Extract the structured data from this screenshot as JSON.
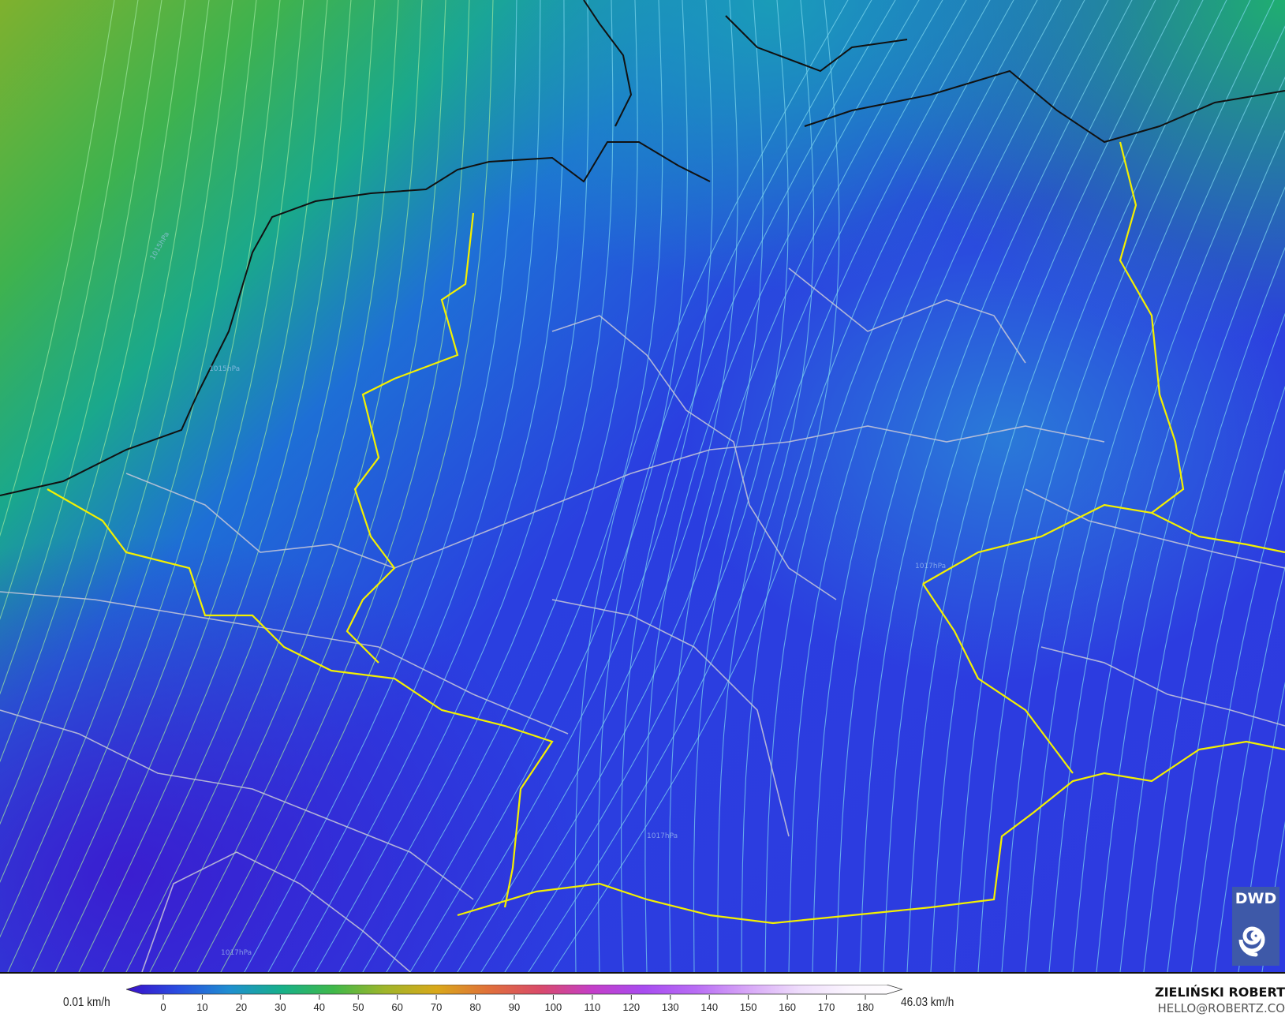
{
  "map": {
    "variable": "wind speed with streamlines",
    "pressure_labels": [
      "1015hPa",
      "1017hPa",
      "1015hPa",
      "1017hPa",
      "1017hPa"
    ]
  },
  "legend": {
    "min_label": "0.01 km/h",
    "max_label": "46.03 km/h",
    "ticks": [
      "0",
      "10",
      "20",
      "30",
      "40",
      "50",
      "60",
      "70",
      "80",
      "90",
      "100",
      "110",
      "120",
      "130",
      "140",
      "150",
      "160",
      "170",
      "180"
    ],
    "colors": [
      "#3a0fc9",
      "#2a4de0",
      "#1f8fd0",
      "#17b08a",
      "#3fb84a",
      "#9fb52a",
      "#d9a81a",
      "#e0703a",
      "#d94a6a",
      "#c43ec8",
      "#a84cf0",
      "#b86cf4",
      "#d7a6f7",
      "#eedcfb",
      "#fbf6fe",
      "#ffffff"
    ]
  },
  "credits": {
    "author": "ZIELIŃSKI ROBERT",
    "email": "HELLO@ROBERTZ.CO"
  },
  "logo": {
    "text": "DWD",
    "icon": "spiral-icon",
    "color": "#3e59a8"
  }
}
